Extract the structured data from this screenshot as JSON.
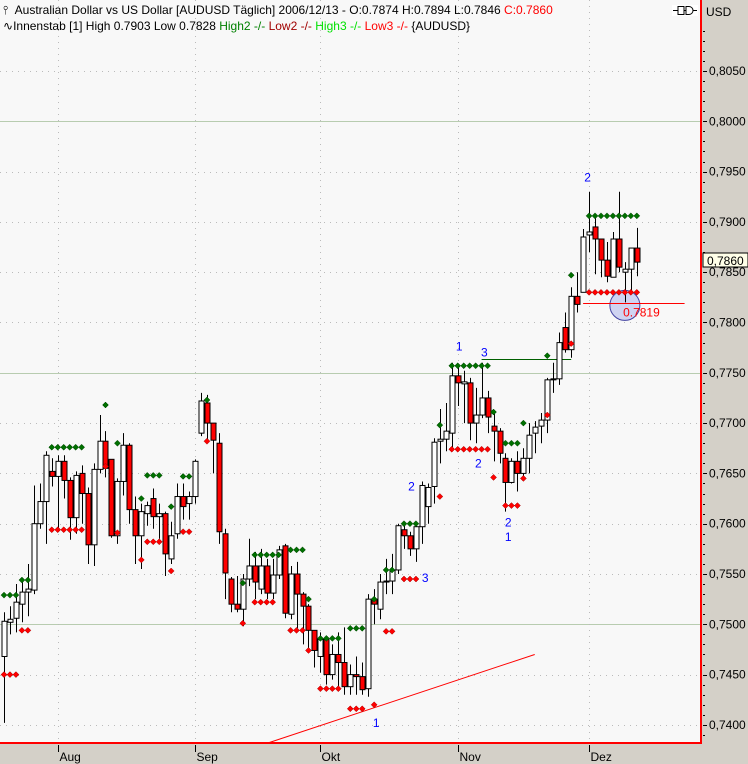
{
  "header": {
    "line1_icon": "candle-icon",
    "line1_text": "Australian Dollar vs US Dollar [AUDUSD  Täglich] 2006/12/13 - O:0.7874 H:0.7894 L:0.7846 ",
    "line1_close": "C:0.7860",
    "line2_icon": "indicator-wave-icon",
    "line2_text": "Innenstab [1] High 0.7903 Low 0.7828 ",
    "line2_high2": "High2 -/- ",
    "line2_low2": "Low2 -/- ",
    "line2_high3": "High3 -/- ",
    "line2_low3": "Low3 -/- ",
    "line2_symbol": "{AUDUSD}"
  },
  "toolbar": {
    "link_icon": "chart-link-icon"
  },
  "axis": {
    "currency": "USD",
    "current_price_label": "0,7860"
  },
  "colors": {
    "up_candle": "#ffffff",
    "down_candle": "#ff0000",
    "high_dot": "#007000",
    "low_dot": "#ff0000",
    "label": "#0000ff",
    "frame": "#ff0000",
    "high2": "#008000",
    "low2": "#a00000",
    "high3": "#00e000",
    "low3": "#ff0000",
    "circle": "#c8ccf0"
  },
  "chart_data": {
    "type": "candlestick",
    "title": "Australian Dollar vs US Dollar [AUDUSD  Täglich]",
    "ylim": [
      0.7382,
      0.8095
    ],
    "y_ticks": [
      "0,7400",
      "0,7450",
      "0,7500",
      "0,7550",
      "0,7600",
      "0,7650",
      "0,7700",
      "0,7750",
      "0,7800",
      "0,7850",
      "0,7900",
      "0,7950",
      "0,8000",
      "0,8050"
    ],
    "y_tick_values": [
      0.74,
      0.745,
      0.75,
      0.755,
      0.76,
      0.765,
      0.77,
      0.775,
      0.78,
      0.785,
      0.79,
      0.795,
      0.8,
      0.805
    ],
    "x_ticks": [
      {
        "label": "Aug",
        "bar": 9
      },
      {
        "label": "Sep",
        "bar": 32
      },
      {
        "label": "Okt",
        "bar": 53
      },
      {
        "label": "Nov",
        "bar": 76
      },
      {
        "label": "Dez",
        "bar": 98
      }
    ],
    "grid": true,
    "candles_ohlc": [
      [
        0.7468,
        0.7512,
        0.7402,
        0.7503
      ],
      [
        0.7502,
        0.7518,
        0.749,
        0.7505
      ],
      [
        0.7506,
        0.754,
        0.7492,
        0.7522
      ],
      [
        0.752,
        0.7545,
        0.7502,
        0.7532
      ],
      [
        0.7532,
        0.756,
        0.7508,
        0.7535
      ],
      [
        0.7534,
        0.7638,
        0.753,
        0.76
      ],
      [
        0.76,
        0.764,
        0.7595,
        0.7622
      ],
      [
        0.7622,
        0.7672,
        0.758,
        0.7668
      ],
      [
        0.7652,
        0.7665,
        0.7637,
        0.7647
      ],
      [
        0.7647,
        0.7668,
        0.7595,
        0.7662
      ],
      [
        0.7662,
        0.7668,
        0.7625,
        0.7643
      ],
      [
        0.7643,
        0.7646,
        0.7584,
        0.7606
      ],
      [
        0.7606,
        0.7652,
        0.759,
        0.7648
      ],
      [
        0.765,
        0.7658,
        0.76,
        0.763
      ],
      [
        0.763,
        0.7636,
        0.756,
        0.7579
      ],
      [
        0.7579,
        0.766,
        0.7558,
        0.7654
      ],
      [
        0.7654,
        0.7708,
        0.765,
        0.7682
      ],
      [
        0.7682,
        0.7692,
        0.7646,
        0.7655
      ],
      [
        0.7664,
        0.7664,
        0.7586,
        0.7588
      ],
      [
        0.7588,
        0.7645,
        0.758,
        0.7642
      ],
      [
        0.7642,
        0.769,
        0.7628,
        0.7678
      ],
      [
        0.7678,
        0.768,
        0.76,
        0.7614
      ],
      [
        0.7614,
        0.7627,
        0.756,
        0.7588
      ],
      [
        0.7588,
        0.762,
        0.7555,
        0.7612
      ],
      [
        0.761,
        0.7622,
        0.7598,
        0.7618
      ],
      [
        0.7625,
        0.7635,
        0.7595,
        0.7607
      ],
      [
        0.7607,
        0.762,
        0.7585,
        0.761
      ],
      [
        0.761,
        0.7612,
        0.7548,
        0.757
      ],
      [
        0.7565,
        0.7602,
        0.756,
        0.7588
      ],
      [
        0.759,
        0.764,
        0.7585,
        0.7627
      ],
      [
        0.7627,
        0.764,
        0.7604,
        0.7617
      ],
      [
        0.762,
        0.7632,
        0.7604,
        0.7627
      ],
      [
        0.7627,
        0.7664,
        0.762,
        0.7662
      ],
      [
        0.769,
        0.773,
        0.7687,
        0.7722
      ],
      [
        0.772,
        0.7728,
        0.7683,
        0.77
      ],
      [
        0.77,
        0.77,
        0.765,
        0.7683
      ],
      [
        0.768,
        0.769,
        0.758,
        0.7592
      ],
      [
        0.759,
        0.7595,
        0.7525,
        0.7551
      ],
      [
        0.7545,
        0.7547,
        0.7512,
        0.752
      ],
      [
        0.752,
        0.7548,
        0.7512,
        0.7515
      ],
      [
        0.7515,
        0.755,
        0.7498,
        0.7545
      ],
      [
        0.7545,
        0.7585,
        0.7538,
        0.7558
      ],
      [
        0.7558,
        0.7572,
        0.7525,
        0.7542
      ],
      [
        0.7535,
        0.7575,
        0.753,
        0.7558
      ],
      [
        0.7558,
        0.7565,
        0.7525,
        0.7531
      ],
      [
        0.7531,
        0.7565,
        0.7525,
        0.7549
      ],
      [
        0.7549,
        0.7578,
        0.7545,
        0.7574
      ],
      [
        0.7578,
        0.758,
        0.7506,
        0.7511
      ],
      [
        0.751,
        0.7558,
        0.7505,
        0.755
      ],
      [
        0.755,
        0.7562,
        0.7496,
        0.753
      ],
      [
        0.753,
        0.7532,
        0.748,
        0.7518
      ],
      [
        0.7518,
        0.752,
        0.7474,
        0.7494
      ],
      [
        0.7494,
        0.7494,
        0.7457,
        0.7474
      ],
      [
        0.7468,
        0.7492,
        0.7452,
        0.7485
      ],
      [
        0.7485,
        0.7488,
        0.744,
        0.745
      ],
      [
        0.745,
        0.748,
        0.7445,
        0.747
      ],
      [
        0.747,
        0.7492,
        0.7437,
        0.7462
      ],
      [
        0.7462,
        0.7497,
        0.743,
        0.7438
      ],
      [
        0.7438,
        0.746,
        0.743,
        0.745
      ],
      [
        0.745,
        0.7468,
        0.743,
        0.7448
      ],
      [
        0.7448,
        0.7462,
        0.743,
        0.7435
      ],
      [
        0.7436,
        0.753,
        0.7428,
        0.7525
      ],
      [
        0.7525,
        0.7535,
        0.75,
        0.752
      ],
      [
        0.7515,
        0.755,
        0.7505,
        0.7542
      ],
      [
        0.7542,
        0.7565,
        0.753,
        0.7543
      ],
      [
        0.7543,
        0.757,
        0.753,
        0.7554
      ],
      [
        0.7554,
        0.76,
        0.755,
        0.7598
      ],
      [
        0.7594,
        0.7602,
        0.7575,
        0.7588
      ],
      [
        0.7588,
        0.7592,
        0.7568,
        0.7575
      ],
      [
        0.7575,
        0.76,
        0.7562,
        0.7597
      ],
      [
        0.7597,
        0.7642,
        0.758,
        0.7638
      ],
      [
        0.7617,
        0.764,
        0.76,
        0.7636
      ],
      [
        0.7637,
        0.7685,
        0.762,
        0.7681
      ],
      [
        0.7682,
        0.7714,
        0.766,
        0.7684
      ],
      [
        0.7684,
        0.772,
        0.7672,
        0.7692
      ],
      [
        0.769,
        0.776,
        0.7675,
        0.7747
      ],
      [
        0.7747,
        0.7758,
        0.7717,
        0.774
      ],
      [
        0.7739,
        0.7752,
        0.77,
        0.7741
      ],
      [
        0.774,
        0.7745,
        0.7683,
        0.77
      ],
      [
        0.77,
        0.7735,
        0.768,
        0.7708
      ],
      [
        0.7708,
        0.776,
        0.7705,
        0.7725
      ],
      [
        0.7725,
        0.7732,
        0.769,
        0.7706
      ],
      [
        0.7697,
        0.771,
        0.7662,
        0.7692
      ],
      [
        0.7692,
        0.7695,
        0.766,
        0.767
      ],
      [
        0.7665,
        0.767,
        0.7612,
        0.7641
      ],
      [
        0.7641,
        0.7665,
        0.764,
        0.7662
      ],
      [
        0.7662,
        0.7672,
        0.7632,
        0.765
      ],
      [
        0.765,
        0.7675,
        0.7645,
        0.7665
      ],
      [
        0.7665,
        0.77,
        0.765,
        0.7688
      ],
      [
        0.769,
        0.7702,
        0.767,
        0.7696
      ],
      [
        0.7697,
        0.771,
        0.768,
        0.7703
      ],
      [
        0.7703,
        0.7745,
        0.769,
        0.7743
      ],
      [
        0.7743,
        0.776,
        0.773,
        0.7744
      ],
      [
        0.7744,
        0.779,
        0.7738,
        0.778
      ],
      [
        0.7795,
        0.781,
        0.777,
        0.7773
      ],
      [
        0.7773,
        0.7835,
        0.7765,
        0.7826
      ],
      [
        0.7826,
        0.785,
        0.781,
        0.7818
      ],
      [
        0.783,
        0.7893,
        0.783,
        0.7885
      ],
      [
        0.7887,
        0.793,
        0.787,
        0.789
      ],
      [
        0.7895,
        0.7905,
        0.7848,
        0.7883
      ],
      [
        0.7883,
        0.7875,
        0.7845,
        0.7862
      ],
      [
        0.7862,
        0.788,
        0.784,
        0.7846
      ],
      [
        0.7845,
        0.789,
        0.7845,
        0.7883
      ],
      [
        0.7883,
        0.793,
        0.785,
        0.7855
      ],
      [
        0.785,
        0.786,
        0.782,
        0.7853
      ],
      [
        0.7853,
        0.7874,
        0.783,
        0.7874
      ],
      [
        0.7874,
        0.7894,
        0.7846,
        0.786
      ]
    ],
    "inside_bar_levels": [
      {
        "kind": "high",
        "price": 0.7529,
        "from": 0,
        "to": 2
      },
      {
        "kind": "high",
        "price": 0.7544,
        "from": 3,
        "to": 4
      },
      {
        "kind": "high",
        "price": 0.7676,
        "from": 8,
        "to": 13
      },
      {
        "kind": "high",
        "price": 0.7718,
        "from": 17,
        "to": 17
      },
      {
        "kind": "high",
        "price": 0.768,
        "from": 19,
        "to": 19
      },
      {
        "kind": "high",
        "price": 0.7625,
        "from": 23,
        "to": 23
      },
      {
        "kind": "high",
        "price": 0.7648,
        "from": 24,
        "to": 26
      },
      {
        "kind": "high",
        "price": 0.7617,
        "from": 28,
        "to": 28
      },
      {
        "kind": "high",
        "price": 0.7647,
        "from": 30,
        "to": 31
      },
      {
        "kind": "high",
        "price": 0.7723,
        "from": 34,
        "to": 34
      },
      {
        "kind": "high",
        "price": 0.7541,
        "from": 40,
        "to": 40
      },
      {
        "kind": "high",
        "price": 0.7569,
        "from": 42,
        "to": 46
      },
      {
        "kind": "high",
        "price": 0.7574,
        "from": 48,
        "to": 50
      },
      {
        "kind": "high",
        "price": 0.7525,
        "from": 51,
        "to": 51
      },
      {
        "kind": "high",
        "price": 0.7486,
        "from": 53,
        "to": 56
      },
      {
        "kind": "high",
        "price": 0.7496,
        "from": 58,
        "to": 60
      },
      {
        "kind": "high",
        "price": 0.7525,
        "from": 62,
        "to": 62
      },
      {
        "kind": "high",
        "price": 0.7554,
        "from": 64,
        "to": 65
      },
      {
        "kind": "high",
        "price": 0.76,
        "from": 67,
        "to": 69
      },
      {
        "kind": "high",
        "price": 0.7698,
        "from": 73,
        "to": 73
      },
      {
        "kind": "high",
        "price": 0.7757,
        "from": 75,
        "to": 81
      },
      {
        "kind": "high",
        "price": 0.7711,
        "from": 82,
        "to": 82
      },
      {
        "kind": "high",
        "price": 0.768,
        "from": 84,
        "to": 86
      },
      {
        "kind": "high",
        "price": 0.77,
        "from": 87,
        "to": 87
      },
      {
        "kind": "high",
        "price": 0.7767,
        "from": 91,
        "to": 91
      },
      {
        "kind": "high",
        "price": 0.7847,
        "from": 95,
        "to": 95
      },
      {
        "kind": "high",
        "price": 0.7906,
        "from": 98,
        "to": 106
      },
      {
        "kind": "low",
        "price": 0.745,
        "from": 0,
        "to": 2
      },
      {
        "kind": "low",
        "price": 0.7494,
        "from": 3,
        "to": 4
      },
      {
        "kind": "low",
        "price": 0.7594,
        "from": 8,
        "to": 13
      },
      {
        "kind": "low",
        "price": 0.7657,
        "from": 17,
        "to": 17
      },
      {
        "kind": "low",
        "price": 0.7591,
        "from": 19,
        "to": 19
      },
      {
        "kind": "low",
        "price": 0.7564,
        "from": 23,
        "to": 23
      },
      {
        "kind": "low",
        "price": 0.7582,
        "from": 24,
        "to": 26
      },
      {
        "kind": "low",
        "price": 0.7553,
        "from": 28,
        "to": 28
      },
      {
        "kind": "low",
        "price": 0.7592,
        "from": 30,
        "to": 31
      },
      {
        "kind": "low",
        "price": 0.7682,
        "from": 34,
        "to": 34
      },
      {
        "kind": "low",
        "price": 0.7501,
        "from": 40,
        "to": 40
      },
      {
        "kind": "low",
        "price": 0.7522,
        "from": 42,
        "to": 45
      },
      {
        "kind": "low",
        "price": 0.7494,
        "from": 48,
        "to": 50
      },
      {
        "kind": "low",
        "price": 0.7474,
        "from": 51,
        "to": 51
      },
      {
        "kind": "low",
        "price": 0.7436,
        "from": 53,
        "to": 56
      },
      {
        "kind": "low",
        "price": 0.7416,
        "from": 58,
        "to": 60
      },
      {
        "kind": "low",
        "price": 0.742,
        "from": 62,
        "to": 62
      },
      {
        "kind": "low",
        "price": 0.7493,
        "from": 64,
        "to": 65
      },
      {
        "kind": "low",
        "price": 0.7545,
        "from": 67,
        "to": 69
      },
      {
        "kind": "low",
        "price": 0.7627,
        "from": 73,
        "to": 73
      },
      {
        "kind": "low",
        "price": 0.7674,
        "from": 75,
        "to": 81
      },
      {
        "kind": "low",
        "price": 0.7646,
        "from": 82,
        "to": 82
      },
      {
        "kind": "low",
        "price": 0.7618,
        "from": 84,
        "to": 86
      },
      {
        "kind": "low",
        "price": 0.7645,
        "from": 87,
        "to": 87
      },
      {
        "kind": "low",
        "price": 0.7708,
        "from": 91,
        "to": 91
      },
      {
        "kind": "low",
        "price": 0.7779,
        "from": 95,
        "to": 95
      },
      {
        "kind": "low",
        "price": 0.783,
        "from": 98,
        "to": 106
      }
    ],
    "wave_labels": [
      {
        "text": "2",
        "bar": 97.7,
        "price": 0.7945
      },
      {
        "text": "1",
        "bar": 76.2,
        "price": 0.7777
      },
      {
        "text": "3",
        "bar": 80.4,
        "price": 0.7771
      },
      {
        "text": "2",
        "bar": 68.2,
        "price": 0.7638
      },
      {
        "text": "2",
        "bar": 79.4,
        "price": 0.7661
      },
      {
        "text": "2",
        "bar": 84.4,
        "price": 0.7602
      },
      {
        "text": "1",
        "bar": 84.4,
        "price": 0.7588
      },
      {
        "text": "3",
        "bar": 70.5,
        "price": 0.7547
      },
      {
        "text": "1",
        "bar": 62.3,
        "price": 0.7403
      }
    ],
    "resistance_line": {
      "price": 0.7764,
      "from": 80,
      "to": 95,
      "color": "#006000"
    },
    "trend_line": {
      "start": [
        44.2,
        0.7382
      ],
      "end": [
        88.9,
        0.747
      ],
      "color": "#ff0000"
    },
    "marker_line": {
      "price": 0.7819,
      "from": 97,
      "to": 114,
      "label": "0.7819",
      "color": "#ff0000"
    },
    "marker_circle": {
      "bar": 104,
      "price": 0.7817
    }
  }
}
